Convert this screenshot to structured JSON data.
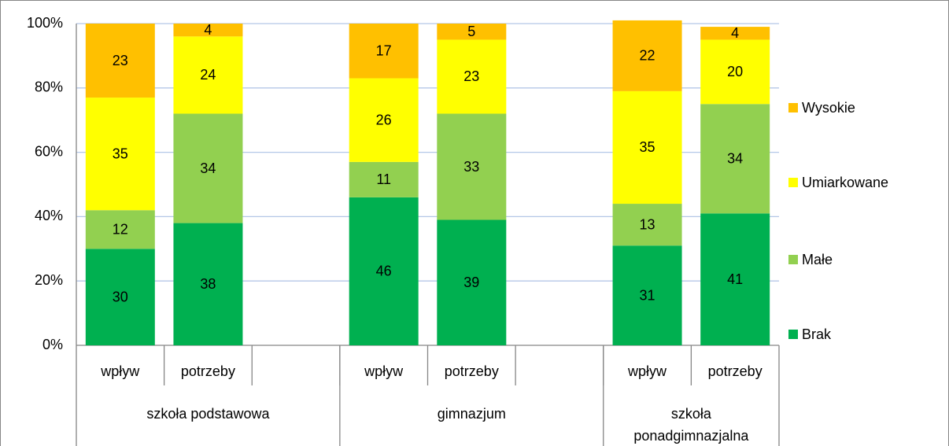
{
  "chart_data": {
    "type": "stacked_bar",
    "categories": [
      "wpływ",
      "potrzeby",
      null,
      "wpływ",
      "potrzeby",
      null,
      "wpływ",
      "potrzeby"
    ],
    "groups": [
      "szkoła podstawowa",
      "gimnazjum",
      "szkoła\nponadgimnazjalna"
    ],
    "series": [
      {
        "name": "Brak",
        "color": "#00b050",
        "values": [
          30,
          38,
          null,
          46,
          39,
          null,
          31,
          41
        ]
      },
      {
        "name": "Małe",
        "color": "#92d050",
        "values": [
          12,
          34,
          null,
          11,
          33,
          null,
          13,
          34
        ]
      },
      {
        "name": "Umiarkowane",
        "color": "#ffff00",
        "values": [
          35,
          24,
          null,
          26,
          23,
          null,
          35,
          20
        ]
      },
      {
        "name": "Wysokie",
        "color": "#ffc000",
        "values": [
          23,
          4,
          null,
          17,
          5,
          null,
          22,
          4
        ]
      }
    ],
    "ylim": [
      0,
      100
    ],
    "yticks": [
      {
        "value": 0,
        "label": "0%"
      },
      {
        "value": 20,
        "label": "20%"
      },
      {
        "value": 40,
        "label": "40%"
      },
      {
        "value": 60,
        "label": "60%"
      },
      {
        "value": 80,
        "label": "80%"
      },
      {
        "value": 100,
        "label": "100%"
      }
    ],
    "grid": true,
    "legend": "right"
  }
}
